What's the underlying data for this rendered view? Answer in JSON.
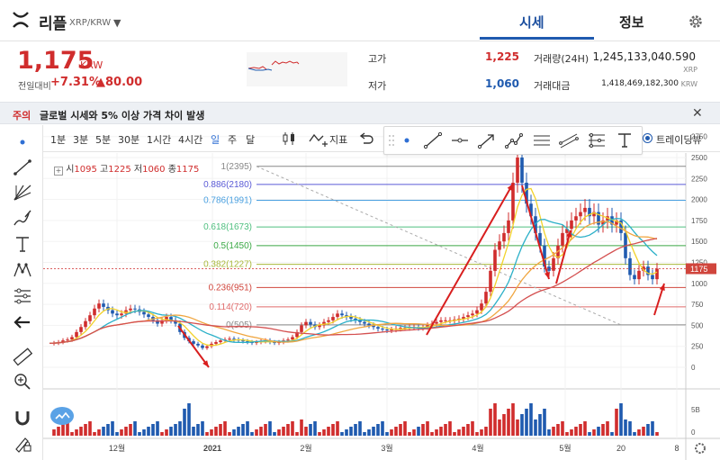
{
  "header": {
    "coin_name": "리플",
    "pair": "XRP/KRW",
    "tabs": [
      "시세",
      "정보"
    ],
    "active_tab": "시세"
  },
  "price": {
    "current": "1,175",
    "currency": "KRW",
    "change_label": "전일대비",
    "change_pct": "+7.31%",
    "change_amt": "▲80.00"
  },
  "stats": {
    "high_label": "고가",
    "high": "1,225",
    "low_label": "저가",
    "low": "1,060",
    "volume_label": "거래량(24H)",
    "volume": "1,245,133,040.590",
    "volume_unit": "XRP",
    "amount_label": "거래대금",
    "amount": "1,418,469,182,300",
    "amount_unit": "KRW"
  },
  "notice": {
    "tag": "주의",
    "text": "글로벌 시세와 5% 이상 가격 차이 발생"
  },
  "toolbar": {
    "periods": [
      "1분",
      "3분",
      "5분",
      "30분",
      "1시간",
      "4시간",
      "일",
      "주",
      "달"
    ],
    "selected_period": "일",
    "indicator_label": "지표",
    "trading_view_label": "트레이딩뷰"
  },
  "ohlc": {
    "open_label": "시",
    "open": "1095",
    "high_label": "고",
    "high": "1225",
    "low_label": "저",
    "low": "1060",
    "close_label": "종",
    "close": "1175"
  },
  "colors": {
    "up": "#d02d2d",
    "down": "#1f5aaf",
    "accent": "#2f6fd4"
  },
  "chart_data": {
    "type": "candlestick",
    "yticks": [
      0,
      250,
      500,
      750,
      1000,
      1250,
      1500,
      1750,
      2000,
      2250,
      2500,
      2750
    ],
    "price_label": "1175",
    "volume_ticks": [
      "5B",
      "0"
    ],
    "x_labels": [
      "12월",
      "2021",
      "2월",
      "3월",
      "4월",
      "5월",
      "20",
      "8"
    ],
    "fib_levels": [
      {
        "label": "1(2395)",
        "value": 2395,
        "color": "#888888"
      },
      {
        "label": "0.886(2180)",
        "value": 2180,
        "color": "#5b5bd6"
      },
      {
        "label": "0.786(1991)",
        "value": 1991,
        "color": "#4aa0e0"
      },
      {
        "label": "0.618(1673)",
        "value": 1673,
        "color": "#4fbf7f"
      },
      {
        "label": "0.5(1450)",
        "value": 1450,
        "color": "#3aa845"
      },
      {
        "label": "0.382(1227)",
        "value": 1227,
        "color": "#a8b83a"
      },
      {
        "label": "0.236(951)",
        "value": 951,
        "color": "#d0453c"
      },
      {
        "label": "0.114(720)",
        "value": 720,
        "color": "#e06b6b"
      },
      {
        "label": "0(505)",
        "value": 505,
        "color": "#888888"
      }
    ]
  }
}
